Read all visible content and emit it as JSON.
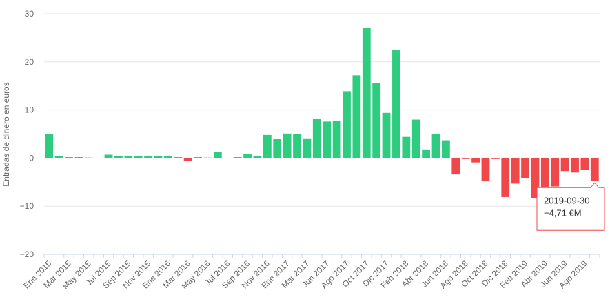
{
  "chart_data": {
    "type": "bar",
    "title": "",
    "xlabel": "",
    "ylabel": "Entradas de dinero en euros",
    "ylim": [
      -20,
      30
    ],
    "yticks": [
      "30",
      "20",
      "10",
      "0",
      "−10",
      "−20"
    ],
    "ytick_values": [
      30,
      20,
      10,
      0,
      -10,
      -20
    ],
    "grid": true,
    "legend": "none",
    "colors": {
      "positive": "#2ecc7f",
      "negative": "#f0474b",
      "tooltip_border": "#f0474b"
    },
    "x_tick_labels": [
      "Ene 2015",
      "Mar 2015",
      "May 2015",
      "Jul 2015",
      "Sep 2015",
      "Nov 2015",
      "Ene 2016",
      "Mar 2016",
      "May 2016",
      "Jul 2016",
      "Sep 2016",
      "Nov 2016",
      "Ene 2017",
      "Mar 2017",
      "Jun 2017",
      "Ago 2017",
      "Oct 2017",
      "Dic 2017",
      "Feb 2018",
      "Abr 2018",
      "Jun 2018",
      "Ago 2018",
      "Oct 2018",
      "Dic 2018",
      "Feb 2019",
      "Abr 2019",
      "Jun 2019",
      "Ago 2019"
    ],
    "x_tick_positions": [
      0,
      2,
      4,
      6,
      8,
      10,
      12,
      14,
      16,
      18,
      20,
      22,
      24,
      26,
      28,
      30,
      32,
      34,
      36,
      38,
      40,
      42,
      44,
      46,
      48,
      50,
      52,
      54
    ],
    "values": [
      5.0,
      0.4,
      0.2,
      0.2,
      0.1,
      0,
      0.7,
      0.4,
      0.4,
      0.4,
      0.4,
      0.4,
      0.4,
      0.2,
      -0.6,
      0.2,
      0.1,
      1.2,
      0,
      0.2,
      0.8,
      0.5,
      4.8,
      4.0,
      5.1,
      5.0,
      4.1,
      8.1,
      7.6,
      7.8,
      13.9,
      17.2,
      27.1,
      15.6,
      9.4,
      22.5,
      4.4,
      8.0,
      1.8,
      5.0,
      3.7,
      -3.4,
      -0.2,
      -0.9,
      -4.7,
      -0.2,
      -8.1,
      -5.3,
      -4.1,
      -8.4,
      -6.2,
      -5.9,
      -2.7,
      -3.0,
      -2.5,
      -4.71
    ],
    "tooltip": {
      "date": "2019-09-30",
      "value": "−4,71 €M"
    }
  }
}
